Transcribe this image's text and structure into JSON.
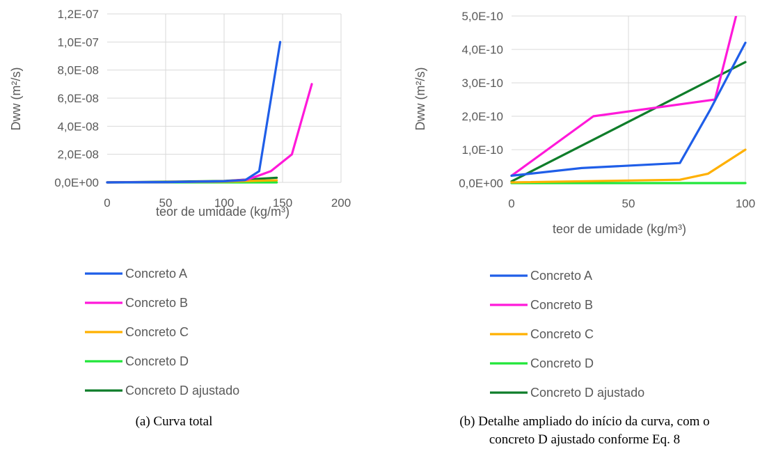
{
  "charts": [
    {
      "caption": "(a) Curva total",
      "chart_data": {
        "type": "line",
        "xlabel": "teor de umidade (kg/m³)",
        "ylabel": "Dww (m²/s)",
        "xlim": [
          0,
          200
        ],
        "ylim": [
          0,
          1.2e-07
        ],
        "x_ticks": [
          "0",
          "50",
          "100",
          "150",
          "200"
        ],
        "y_ticks": [
          "0,0E+00",
          "2,0E-08",
          "4,0E-08",
          "6,0E-08",
          "8,0E-08",
          "1,0E-07",
          "1,2E-07"
        ],
        "grid": true,
        "legend_position": "bottom",
        "series": [
          {
            "name": "Concreto A",
            "color": "#1f5ee8",
            "points": [
              [
                0,
                0
              ],
              [
                50,
                2e-10
              ],
              [
                100,
                8e-10
              ],
              [
                118,
                1.6e-09
              ],
              [
                130,
                8e-09
              ],
              [
                148,
                1e-07
              ]
            ]
          },
          {
            "name": "Concreto B",
            "color": "#ff19d9",
            "points": [
              [
                0,
                0
              ],
              [
                50,
                2e-10
              ],
              [
                100,
                8e-10
              ],
              [
                120,
                2e-09
              ],
              [
                140,
                8e-09
              ],
              [
                158,
                2e-08
              ],
              [
                175,
                7e-08
              ]
            ]
          },
          {
            "name": "Concreto C",
            "color": "#ffb000",
            "points": [
              [
                0,
                0
              ],
              [
                100,
                5e-10
              ],
              [
                145,
                1.5e-09
              ]
            ]
          },
          {
            "name": "Concreto D",
            "color": "#22e63a",
            "points": [
              [
                0,
                0
              ],
              [
                145,
                0
              ]
            ]
          },
          {
            "name": "Concreto D ajustado",
            "color": "#0f7d2a",
            "points": [
              [
                0,
                0
              ],
              [
                100,
                1e-09
              ],
              [
                145,
                3.3e-09
              ]
            ]
          }
        ]
      }
    },
    {
      "caption": "(b) Detalhe ampliado do início da curva, com o concreto D ajustado conforme Eq. 8",
      "chart_data": {
        "type": "line",
        "xlabel": "teor de umidade (kg/m³)",
        "ylabel": "Dww (m²/s)",
        "xlim": [
          0,
          100
        ],
        "ylim": [
          0,
          5e-10
        ],
        "x_ticks": [
          "0",
          "50",
          "100"
        ],
        "y_ticks": [
          "0,0E+00",
          "1,0E-10",
          "2,0E-10",
          "3,0E-10",
          "4,0E-10",
          "5,0E-10"
        ],
        "grid": true,
        "legend_position": "bottom",
        "series": [
          {
            "name": "Concreto A",
            "color": "#1f5ee8",
            "points": [
              [
                0,
                2.2e-11
              ],
              [
                30,
                4.5e-11
              ],
              [
                72,
                6e-11
              ],
              [
                85,
                2.2e-10
              ],
              [
                100,
                4.2e-10
              ]
            ]
          },
          {
            "name": "Concreto B",
            "color": "#ff19d9",
            "points": [
              [
                0,
                2.2e-11
              ],
              [
                35,
                2e-10
              ],
              [
                87,
                2.5e-10
              ],
              [
                96,
                5e-10
              ]
            ]
          },
          {
            "name": "Concreto C",
            "color": "#ffb000",
            "points": [
              [
                0,
                2e-12
              ],
              [
                72,
                1e-11
              ],
              [
                84,
                2.8e-11
              ],
              [
                100,
                1e-10
              ]
            ]
          },
          {
            "name": "Concreto D",
            "color": "#22e63a",
            "points": [
              [
                0,
                0
              ],
              [
                100,
                0
              ]
            ]
          },
          {
            "name": "Concreto D ajustado",
            "color": "#0f7d2a",
            "points": [
              [
                0,
                5e-12
              ],
              [
                100,
                3.62e-10
              ]
            ]
          }
        ]
      }
    }
  ]
}
